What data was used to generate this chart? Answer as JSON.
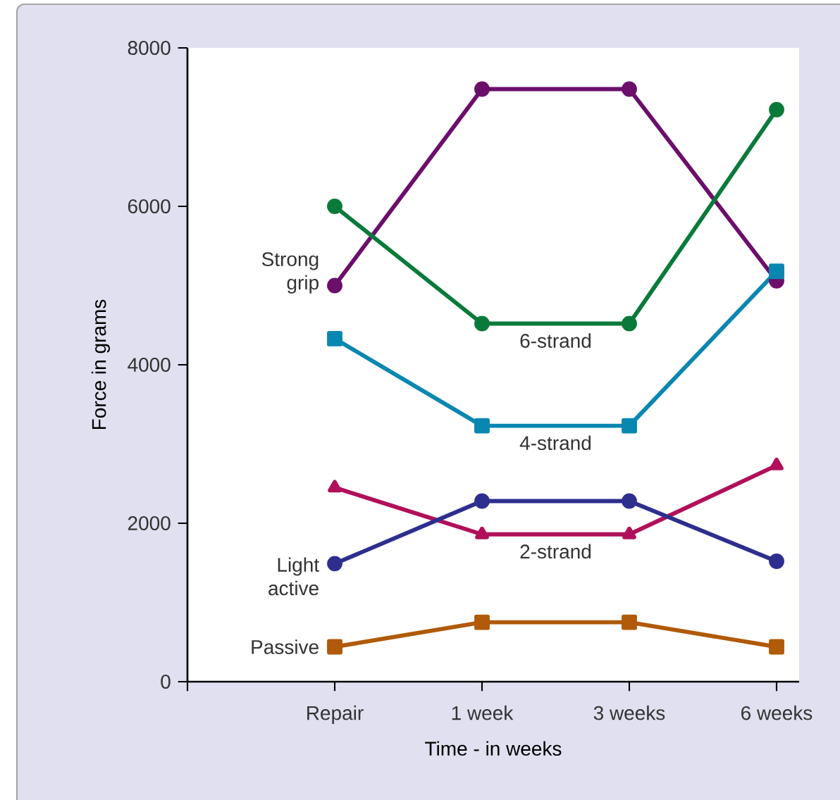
{
  "chart_data": {
    "type": "line",
    "xlabel": "Time - in weeks",
    "ylabel": "Force in grams",
    "categories": [
      null,
      "Repair",
      "1 week",
      "3 weeks",
      "6 weeks"
    ],
    "ylim": [
      0,
      8000
    ],
    "yticks": [
      0,
      2000,
      4000,
      6000,
      8000
    ],
    "line_style": "solid",
    "series": [
      {
        "name": "Strong grip",
        "color": "#6b0f6b",
        "marker": "circle",
        "values": [
          null,
          5000,
          7480,
          7480,
          5060
        ]
      },
      {
        "name": "6-strand",
        "color": "#0a7a3a",
        "marker": "circle",
        "values": [
          null,
          6000,
          4520,
          4520,
          7220
        ]
      },
      {
        "name": "4-strand",
        "color": "#0a87b0",
        "marker": "square",
        "values": [
          null,
          4330,
          3230,
          3230,
          5180
        ]
      },
      {
        "name": "2-strand",
        "color": "#b0105a",
        "marker": "triangle",
        "values": [
          null,
          2450,
          1860,
          1860,
          2730
        ]
      },
      {
        "name": "Light active",
        "color": "#2e2e8f",
        "marker": "circle",
        "values": [
          null,
          1490,
          2280,
          2280,
          1520
        ]
      },
      {
        "name": "Passive",
        "color": "#b05a0a",
        "marker": "square",
        "values": [
          null,
          440,
          750,
          750,
          440
        ]
      }
    ]
  }
}
